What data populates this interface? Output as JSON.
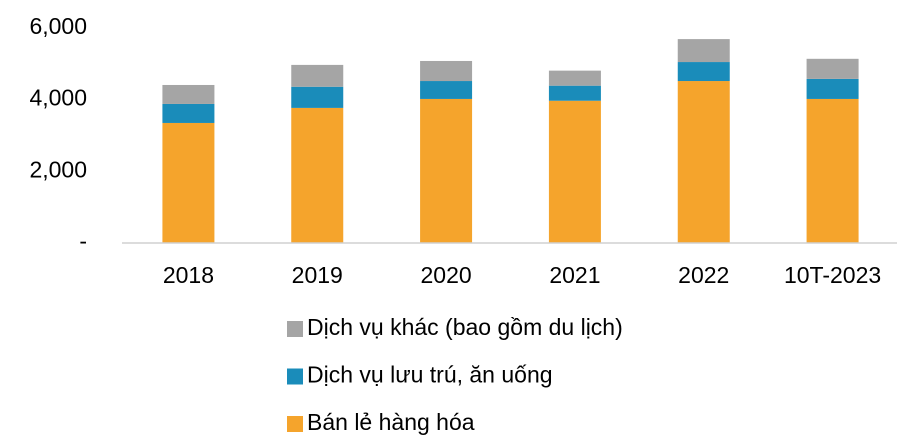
{
  "chart_data": {
    "type": "stacked_bar",
    "categories": [
      "2018",
      "2019",
      "2020",
      "2021",
      "2022",
      "10T-2023"
    ],
    "series": [
      {
        "name": "Bán lẻ hàng hóa",
        "color": "#f5a42c",
        "values": [
          3350,
          3770,
          4020,
          3970,
          4520,
          4020
        ]
      },
      {
        "name": "Dịch vụ lưu trú, ăn uống",
        "color": "#1a8cba",
        "values": [
          530,
          590,
          500,
          420,
          530,
          560
        ]
      },
      {
        "name": "Dịch vụ khác (bao gồm du lịch)",
        "color": "#a5a5a5",
        "values": [
          530,
          610,
          560,
          420,
          640,
          560
        ]
      }
    ],
    "ylim": [
      0,
      6000
    ],
    "yticks": [
      {
        "value": 0,
        "label": "-"
      },
      {
        "value": 2000,
        "label": "2,000"
      },
      {
        "value": 4000,
        "label": "4,000"
      },
      {
        "value": 6000,
        "label": "6,000"
      }
    ]
  }
}
